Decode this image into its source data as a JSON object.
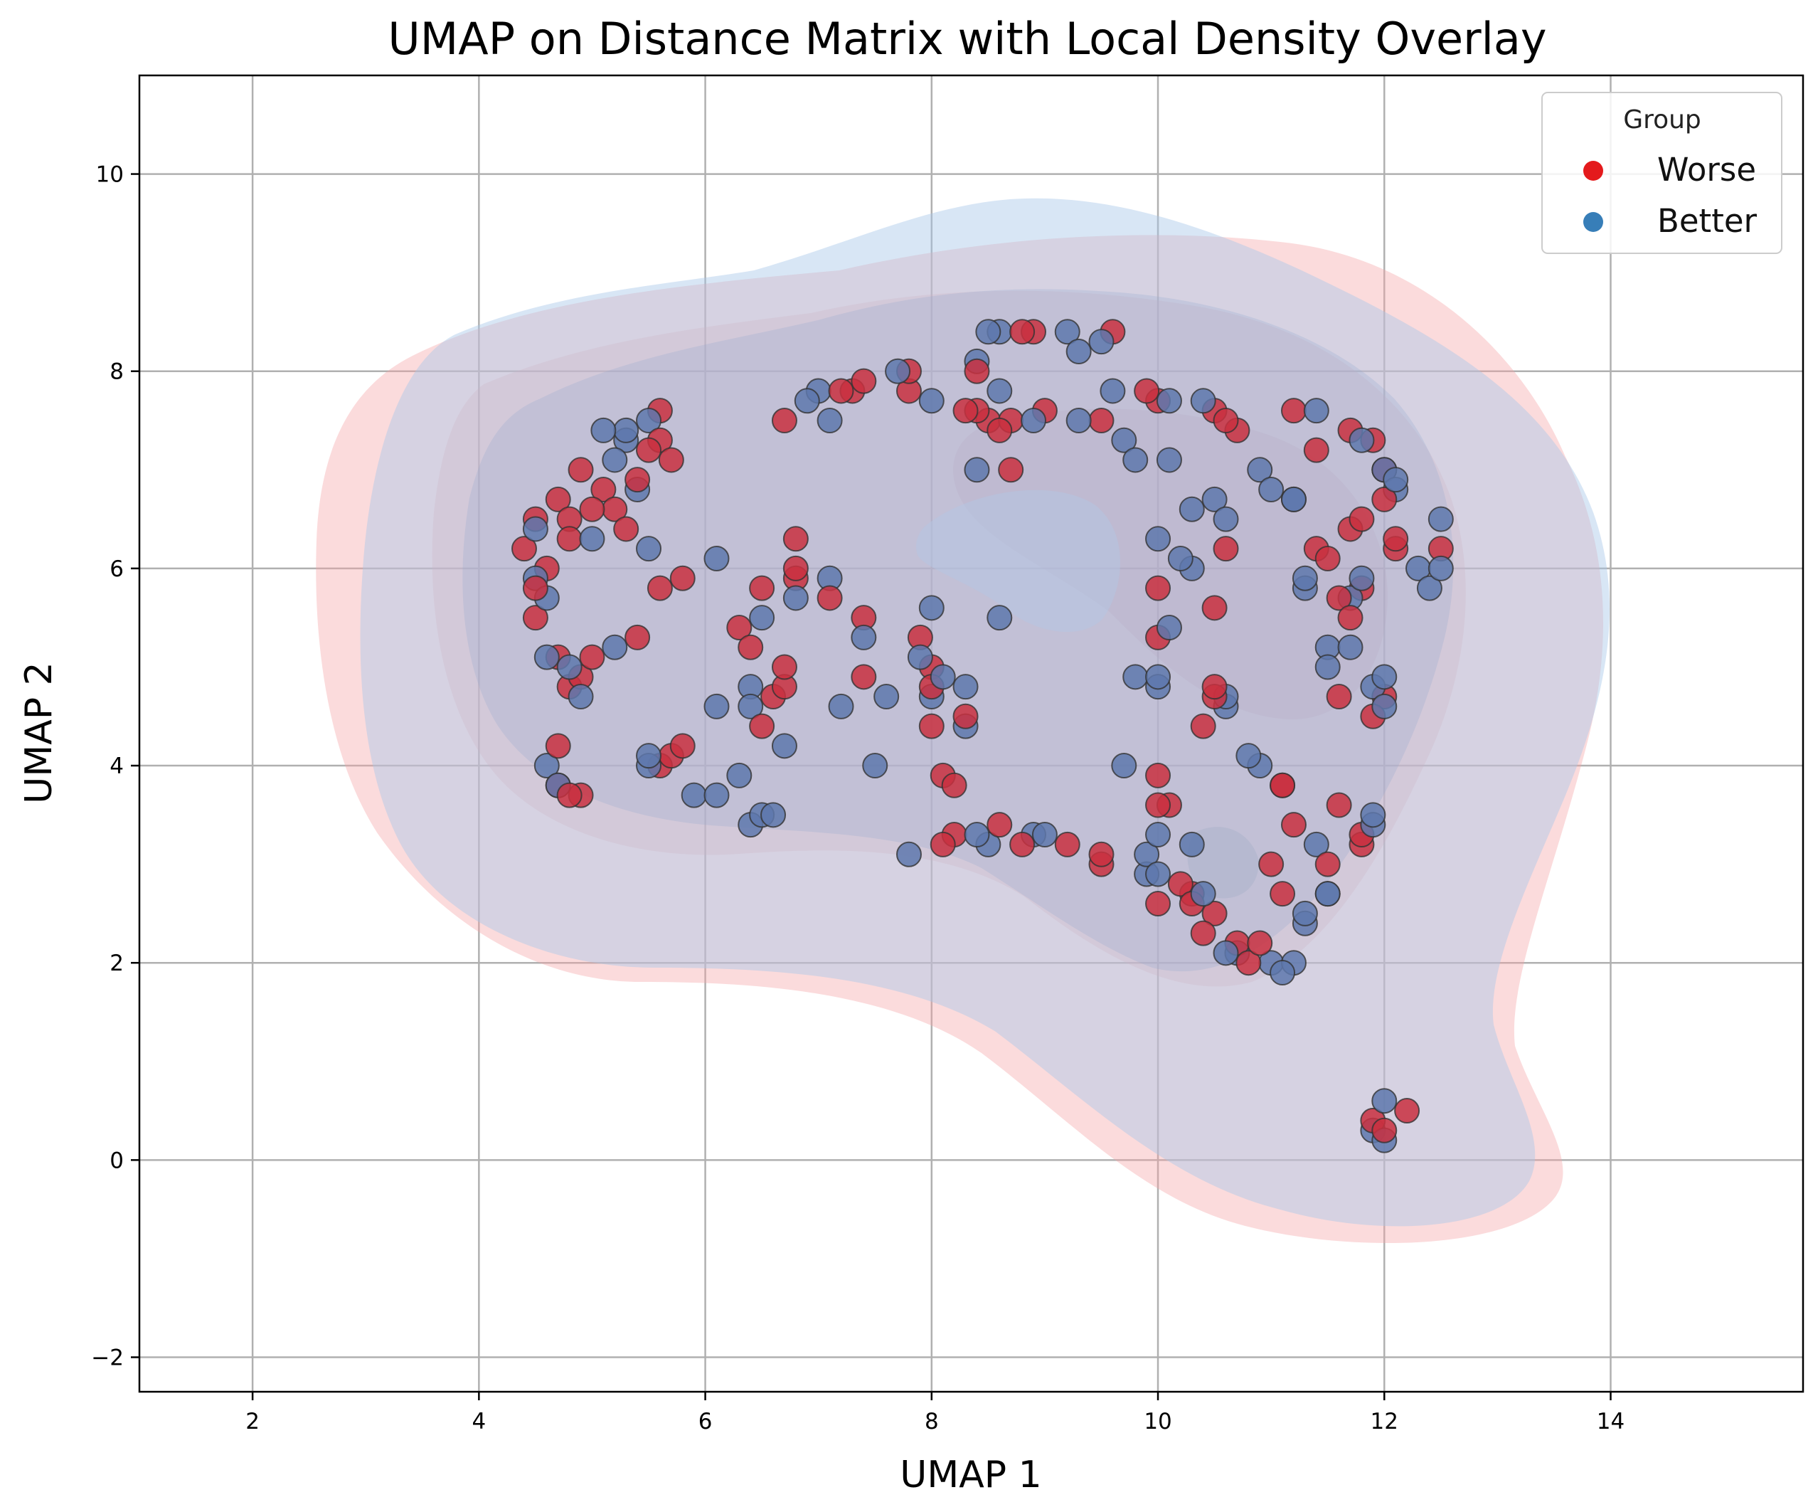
{
  "chart_data": {
    "type": "scatter",
    "title": "UMAP on Distance Matrix with Local Density Overlay",
    "xlabel": "UMAP 1",
    "ylabel": "UMAP 2",
    "xlim": [
      1.0,
      15.7
    ],
    "ylim": [
      -2.35,
      11.0
    ],
    "xticks": [
      2,
      4,
      6,
      8,
      10,
      12,
      14
    ],
    "yticks": [
      -2,
      0,
      2,
      4,
      6,
      8,
      10
    ],
    "ytick_labels": [
      "−2",
      "0",
      "2",
      "4",
      "6",
      "8",
      "10"
    ],
    "grid": true,
    "legend": {
      "title": "Group",
      "position": "top-right"
    },
    "colors": {
      "Worse": "#e41a1c",
      "Better": "#377eb8",
      "Worse_kde": "#f4a6a8",
      "Better_kde": "#a9c8e8"
    },
    "series": [
      {
        "name": "Worse",
        "points": [
          [
            4.4,
            6.2
          ],
          [
            4.5,
            6.5
          ],
          [
            4.5,
            5.8
          ],
          [
            4.5,
            5.5
          ],
          [
            4.6,
            6.0
          ],
          [
            4.7,
            6.7
          ],
          [
            4.8,
            6.3
          ],
          [
            4.8,
            6.5
          ],
          [
            4.9,
            7.0
          ],
          [
            5.0,
            6.6
          ],
          [
            5.1,
            6.8
          ],
          [
            5.2,
            6.6
          ],
          [
            5.3,
            6.4
          ],
          [
            5.4,
            6.9
          ],
          [
            5.5,
            7.2
          ],
          [
            5.6,
            7.3
          ],
          [
            5.7,
            7.1
          ],
          [
            5.6,
            7.6
          ],
          [
            4.7,
            5.1
          ],
          [
            4.8,
            4.8
          ],
          [
            4.9,
            4.9
          ],
          [
            5.0,
            5.1
          ],
          [
            5.4,
            5.3
          ],
          [
            5.6,
            5.8
          ],
          [
            5.8,
            5.9
          ],
          [
            4.7,
            4.2
          ],
          [
            4.7,
            3.8
          ],
          [
            4.8,
            3.7
          ],
          [
            4.9,
            3.7
          ],
          [
            5.6,
            4.0
          ],
          [
            5.7,
            4.1
          ],
          [
            5.8,
            4.2
          ],
          [
            6.3,
            5.4
          ],
          [
            6.4,
            5.2
          ],
          [
            6.5,
            5.8
          ],
          [
            6.5,
            4.4
          ],
          [
            6.6,
            4.7
          ],
          [
            6.7,
            4.8
          ],
          [
            6.7,
            5.0
          ],
          [
            6.8,
            6.3
          ],
          [
            6.8,
            6.0
          ],
          [
            6.8,
            5.9
          ],
          [
            6.7,
            7.5
          ],
          [
            7.1,
            5.7
          ],
          [
            7.2,
            7.8
          ],
          [
            7.3,
            7.8
          ],
          [
            7.4,
            7.9
          ],
          [
            7.4,
            5.5
          ],
          [
            7.4,
            4.9
          ],
          [
            7.8,
            8.0
          ],
          [
            7.8,
            7.8
          ],
          [
            7.9,
            5.3
          ],
          [
            8.0,
            5.0
          ],
          [
            8.0,
            4.8
          ],
          [
            8.0,
            4.4
          ],
          [
            8.1,
            3.9
          ],
          [
            8.2,
            3.8
          ],
          [
            8.1,
            3.2
          ],
          [
            8.2,
            3.3
          ],
          [
            8.3,
            4.5
          ],
          [
            8.3,
            7.6
          ],
          [
            8.4,
            7.6
          ],
          [
            8.4,
            8.0
          ],
          [
            8.5,
            7.5
          ],
          [
            8.6,
            7.4
          ],
          [
            8.6,
            3.4
          ],
          [
            8.7,
            7.0
          ],
          [
            8.7,
            7.5
          ],
          [
            8.8,
            3.2
          ],
          [
            8.8,
            8.4
          ],
          [
            8.9,
            8.4
          ],
          [
            9.0,
            7.6
          ],
          [
            9.2,
            3.2
          ],
          [
            9.5,
            7.5
          ],
          [
            9.5,
            3.1
          ],
          [
            9.5,
            3.0
          ],
          [
            9.6,
            8.4
          ],
          [
            9.9,
            7.8
          ],
          [
            10.0,
            7.7
          ],
          [
            10.0,
            5.8
          ],
          [
            10.0,
            5.3
          ],
          [
            10.0,
            3.9
          ],
          [
            10.0,
            3.6
          ],
          [
            10.0,
            2.6
          ],
          [
            10.1,
            3.6
          ],
          [
            10.2,
            2.8
          ],
          [
            10.3,
            2.7
          ],
          [
            10.3,
            2.6
          ],
          [
            10.4,
            2.3
          ],
          [
            10.4,
            4.4
          ],
          [
            10.5,
            4.8
          ],
          [
            10.5,
            4.7
          ],
          [
            10.5,
            2.5
          ],
          [
            10.5,
            5.6
          ],
          [
            10.5,
            7.6
          ],
          [
            10.6,
            7.5
          ],
          [
            10.6,
            6.2
          ],
          [
            10.7,
            7.4
          ],
          [
            10.7,
            2.2
          ],
          [
            10.8,
            2.0
          ],
          [
            10.9,
            2.2
          ],
          [
            11.0,
            3.0
          ],
          [
            11.1,
            3.8
          ],
          [
            11.1,
            3.8
          ],
          [
            11.1,
            2.7
          ],
          [
            11.2,
            3.4
          ],
          [
            11.2,
            7.6
          ],
          [
            11.4,
            7.2
          ],
          [
            11.4,
            6.2
          ],
          [
            11.5,
            6.1
          ],
          [
            11.5,
            3.0
          ],
          [
            11.6,
            4.7
          ],
          [
            11.6,
            5.7
          ],
          [
            11.6,
            3.6
          ],
          [
            11.7,
            6.4
          ],
          [
            11.7,
            7.4
          ],
          [
            11.7,
            5.5
          ],
          [
            11.8,
            5.8
          ],
          [
            11.8,
            3.2
          ],
          [
            11.8,
            3.3
          ],
          [
            11.8,
            6.5
          ],
          [
            11.9,
            4.5
          ],
          [
            11.9,
            7.3
          ],
          [
            12.0,
            6.7
          ],
          [
            12.0,
            7.0
          ],
          [
            12.0,
            4.7
          ],
          [
            12.1,
            6.2
          ],
          [
            12.1,
            6.3
          ],
          [
            12.5,
            6.2
          ],
          [
            11.9,
            0.4
          ],
          [
            12.0,
            0.3
          ],
          [
            12.2,
            0.5
          ]
        ]
      },
      {
        "name": "Better",
        "points": [
          [
            4.5,
            6.4
          ],
          [
            4.5,
            5.9
          ],
          [
            4.6,
            5.7
          ],
          [
            4.6,
            5.1
          ],
          [
            4.6,
            4.0
          ],
          [
            4.7,
            3.8
          ],
          [
            4.8,
            5.0
          ],
          [
            4.9,
            4.7
          ],
          [
            5.0,
            6.3
          ],
          [
            5.1,
            7.4
          ],
          [
            5.2,
            5.2
          ],
          [
            5.2,
            7.1
          ],
          [
            5.3,
            7.3
          ],
          [
            5.3,
            7.4
          ],
          [
            5.4,
            6.8
          ],
          [
            5.5,
            7.5
          ],
          [
            5.5,
            6.2
          ],
          [
            5.5,
            4.0
          ],
          [
            5.5,
            4.1
          ],
          [
            5.9,
            3.7
          ],
          [
            6.1,
            3.7
          ],
          [
            6.1,
            4.6
          ],
          [
            6.1,
            6.1
          ],
          [
            6.3,
            3.9
          ],
          [
            6.4,
            3.4
          ],
          [
            6.4,
            4.6
          ],
          [
            6.4,
            4.8
          ],
          [
            6.5,
            5.5
          ],
          [
            6.5,
            3.5
          ],
          [
            6.6,
            3.5
          ],
          [
            6.7,
            4.2
          ],
          [
            6.8,
            5.7
          ],
          [
            6.9,
            7.7
          ],
          [
            7.0,
            7.8
          ],
          [
            7.1,
            7.5
          ],
          [
            7.1,
            5.9
          ],
          [
            7.2,
            4.6
          ],
          [
            7.4,
            5.3
          ],
          [
            7.5,
            4.0
          ],
          [
            7.6,
            4.7
          ],
          [
            7.7,
            8.0
          ],
          [
            7.8,
            3.1
          ],
          [
            7.9,
            5.1
          ],
          [
            8.0,
            7.7
          ],
          [
            8.0,
            5.6
          ],
          [
            8.0,
            4.7
          ],
          [
            8.1,
            4.9
          ],
          [
            8.3,
            4.8
          ],
          [
            8.3,
            4.4
          ],
          [
            8.4,
            7.0
          ],
          [
            8.4,
            8.1
          ],
          [
            8.4,
            3.3
          ],
          [
            8.5,
            8.4
          ],
          [
            8.5,
            3.2
          ],
          [
            8.6,
            8.4
          ],
          [
            8.6,
            7.8
          ],
          [
            8.6,
            5.5
          ],
          [
            8.9,
            7.5
          ],
          [
            8.9,
            3.3
          ],
          [
            9.0,
            3.3
          ],
          [
            9.2,
            8.4
          ],
          [
            9.3,
            8.2
          ],
          [
            9.3,
            7.5
          ],
          [
            9.5,
            8.3
          ],
          [
            9.6,
            7.8
          ],
          [
            9.7,
            7.3
          ],
          [
            9.7,
            4.0
          ],
          [
            9.8,
            4.9
          ],
          [
            9.8,
            7.1
          ],
          [
            9.9,
            3.1
          ],
          [
            9.9,
            2.9
          ],
          [
            10.0,
            6.3
          ],
          [
            10.0,
            4.9
          ],
          [
            10.0,
            4.8
          ],
          [
            10.0,
            3.3
          ],
          [
            10.0,
            2.9
          ],
          [
            10.1,
            7.7
          ],
          [
            10.1,
            7.1
          ],
          [
            10.1,
            5.4
          ],
          [
            10.2,
            6.1
          ],
          [
            10.3,
            6.6
          ],
          [
            10.3,
            6.0
          ],
          [
            10.3,
            3.2
          ],
          [
            10.4,
            2.7
          ],
          [
            10.4,
            7.7
          ],
          [
            10.5,
            6.7
          ],
          [
            10.6,
            6.5
          ],
          [
            10.6,
            4.7
          ],
          [
            10.6,
            4.6
          ],
          [
            10.6,
            2.1
          ],
          [
            10.7,
            2.1
          ],
          [
            10.8,
            4.1
          ],
          [
            10.9,
            4.0
          ],
          [
            10.9,
            7.0
          ],
          [
            11.0,
            6.8
          ],
          [
            11.0,
            2.0
          ],
          [
            11.1,
            1.9
          ],
          [
            11.2,
            6.7
          ],
          [
            11.2,
            6.7
          ],
          [
            11.2,
            2.0
          ],
          [
            11.3,
            5.8
          ],
          [
            11.3,
            5.9
          ],
          [
            11.3,
            2.5
          ],
          [
            11.3,
            2.4
          ],
          [
            11.4,
            7.6
          ],
          [
            11.4,
            3.2
          ],
          [
            11.5,
            2.7
          ],
          [
            11.5,
            2.7
          ],
          [
            11.5,
            5.0
          ],
          [
            11.5,
            5.2
          ],
          [
            11.7,
            5.2
          ],
          [
            11.7,
            5.7
          ],
          [
            11.8,
            5.9
          ],
          [
            11.8,
            7.3
          ],
          [
            11.9,
            3.5
          ],
          [
            11.9,
            3.4
          ],
          [
            11.9,
            4.8
          ],
          [
            12.0,
            4.9
          ],
          [
            12.0,
            4.6
          ],
          [
            12.0,
            7.0
          ],
          [
            12.1,
            6.9
          ],
          [
            12.1,
            6.8
          ],
          [
            12.3,
            6.0
          ],
          [
            12.4,
            5.8
          ],
          [
            12.5,
            6.5
          ],
          [
            12.5,
            6.0
          ],
          [
            12.0,
            0.6
          ],
          [
            11.9,
            0.3
          ],
          [
            12.0,
            0.2
          ]
        ]
      }
    ]
  }
}
